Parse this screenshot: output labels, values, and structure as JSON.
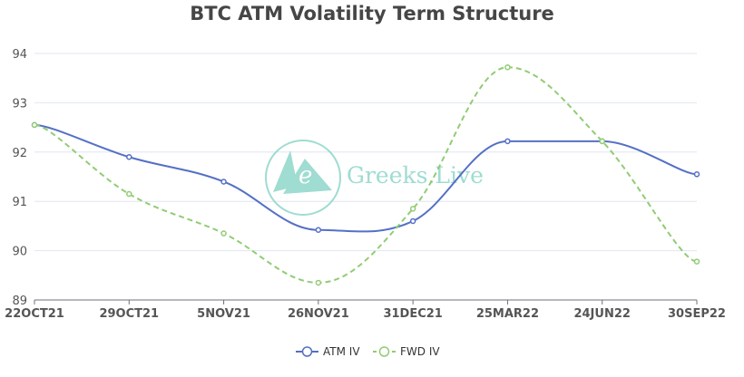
{
  "chart_data": {
    "type": "line",
    "title": "BTC ATM Volatility Term Structure",
    "categories": [
      "22OCT21",
      "29OCT21",
      "5NOV21",
      "26NOV21",
      "31DEC21",
      "25MAR22",
      "24JUN22",
      "30SEP22"
    ],
    "series": [
      {
        "name": "ATM IV",
        "color": "#5470c6",
        "dash": "solid",
        "values": [
          92.55,
          91.9,
          91.4,
          90.42,
          90.6,
          92.22,
          92.22,
          91.55
        ]
      },
      {
        "name": "FWD IV",
        "color": "#91cc75",
        "dash": "dashed",
        "values": [
          92.55,
          91.15,
          90.35,
          89.35,
          90.85,
          93.72,
          92.22,
          89.78
        ]
      }
    ],
    "ylim": [
      89,
      94
    ],
    "yticks": [
      89,
      90,
      91,
      92,
      93,
      94
    ],
    "grid": true,
    "legend": "bottom-center"
  },
  "watermark": {
    "text": "Greeks.Live",
    "letter": "e",
    "color": "#8fd6c9"
  }
}
